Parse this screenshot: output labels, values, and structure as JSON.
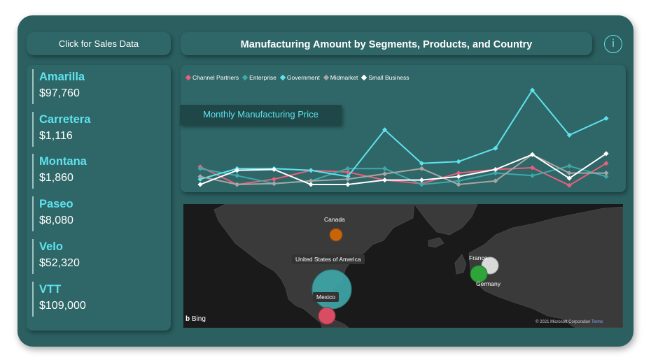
{
  "sales_button": {
    "label": "Click for Sales Data"
  },
  "header": {
    "title": "Manufacturing Amount by Segments, Products, and Country",
    "info_icon": "i"
  },
  "kpis": [
    {
      "name": "Amarilla",
      "value": "$97,760"
    },
    {
      "name": "Carretera",
      "value": "$1,116"
    },
    {
      "name": "Montana",
      "value": "$1,860"
    },
    {
      "name": "Paseo",
      "value": "$8,080"
    },
    {
      "name": "Velo",
      "value": "$52,320"
    },
    {
      "name": "VTT",
      "value": "$109,000"
    }
  ],
  "colors": {
    "accent": "#5ee3ee",
    "panel": "#2f6667",
    "background": "#2b5f60"
  },
  "chart_data": {
    "type": "line",
    "title": "Monthly Manufacturing Price",
    "legend_position": "top-left",
    "x": [
      1,
      2,
      3,
      4,
      5,
      6,
      7,
      8,
      9,
      10,
      11,
      12
    ],
    "series": [
      {
        "name": "Channel Partners",
        "color": "#e8607a",
        "values": [
          24,
          4,
          10,
          20,
          18,
          9,
          5,
          17,
          21,
          23,
          3,
          28
        ]
      },
      {
        "name": "Enterprise",
        "color": "#3fa9aa",
        "values": [
          22,
          14,
          5,
          8,
          22,
          22,
          4,
          8,
          17,
          14,
          25,
          13
        ]
      },
      {
        "name": "Government",
        "color": "#5ee3ee",
        "values": [
          10,
          22,
          22,
          20,
          13,
          66,
          28,
          30,
          45,
          111,
          60,
          79
        ]
      },
      {
        "name": "Midmarket",
        "color": "#a6a6a6",
        "values": [
          13,
          4,
          5,
          8,
          10,
          16,
          22,
          4,
          8,
          38,
          17,
          17
        ]
      },
      {
        "name": "Small Business",
        "color": "#ffffff",
        "values": [
          4,
          20,
          21,
          4,
          4,
          9,
          9,
          13,
          21,
          38,
          11,
          39
        ]
      }
    ]
  },
  "map": {
    "countries": [
      {
        "name": "Canada",
        "color": "#c8650b"
      },
      {
        "name": "United States of America",
        "color": "#3fa9aa"
      },
      {
        "name": "Mexico",
        "color": "#d94d63"
      },
      {
        "name": "France",
        "color": "#d9d9d9"
      },
      {
        "name": "Germany",
        "color": "#2fa43a"
      }
    ],
    "bing_label": "Bing",
    "copyright": "© 2021 Microsoft Corporation",
    "terms": "Terms"
  }
}
